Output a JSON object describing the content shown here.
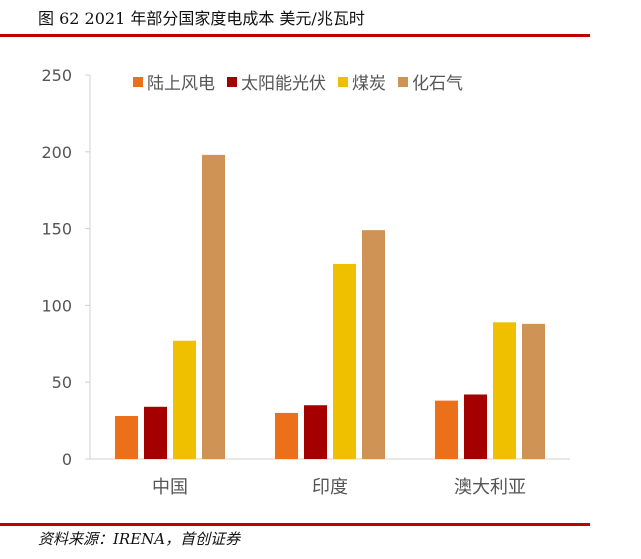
{
  "figure": {
    "title": "图  62 2021 年部分国家度电成本  美元/兆瓦时",
    "source": "资料来源：IRENA，首创证券"
  },
  "chart_data": {
    "type": "bar",
    "title": "2021年部分国家度电成本",
    "ylabel": "美元/兆瓦时",
    "xlabel": "",
    "categories": [
      "中国",
      "印度",
      "澳大利亚"
    ],
    "series": [
      {
        "name": "陆上风电",
        "color": "#ec6f1a",
        "values": [
          28,
          30,
          38
        ]
      },
      {
        "name": "太阳能光伏",
        "color": "#a50000",
        "values": [
          34,
          35,
          42
        ]
      },
      {
        "name": "煤炭",
        "color": "#efc000",
        "values": [
          77,
          127,
          89
        ]
      },
      {
        "name": "化石气",
        "color": "#cf9455",
        "values": [
          198,
          149,
          88
        ]
      }
    ],
    "ylim": [
      0,
      250
    ],
    "yticks": [
      0,
      50,
      100,
      150,
      200,
      250
    ],
    "grid": false,
    "legend_position": "top"
  }
}
